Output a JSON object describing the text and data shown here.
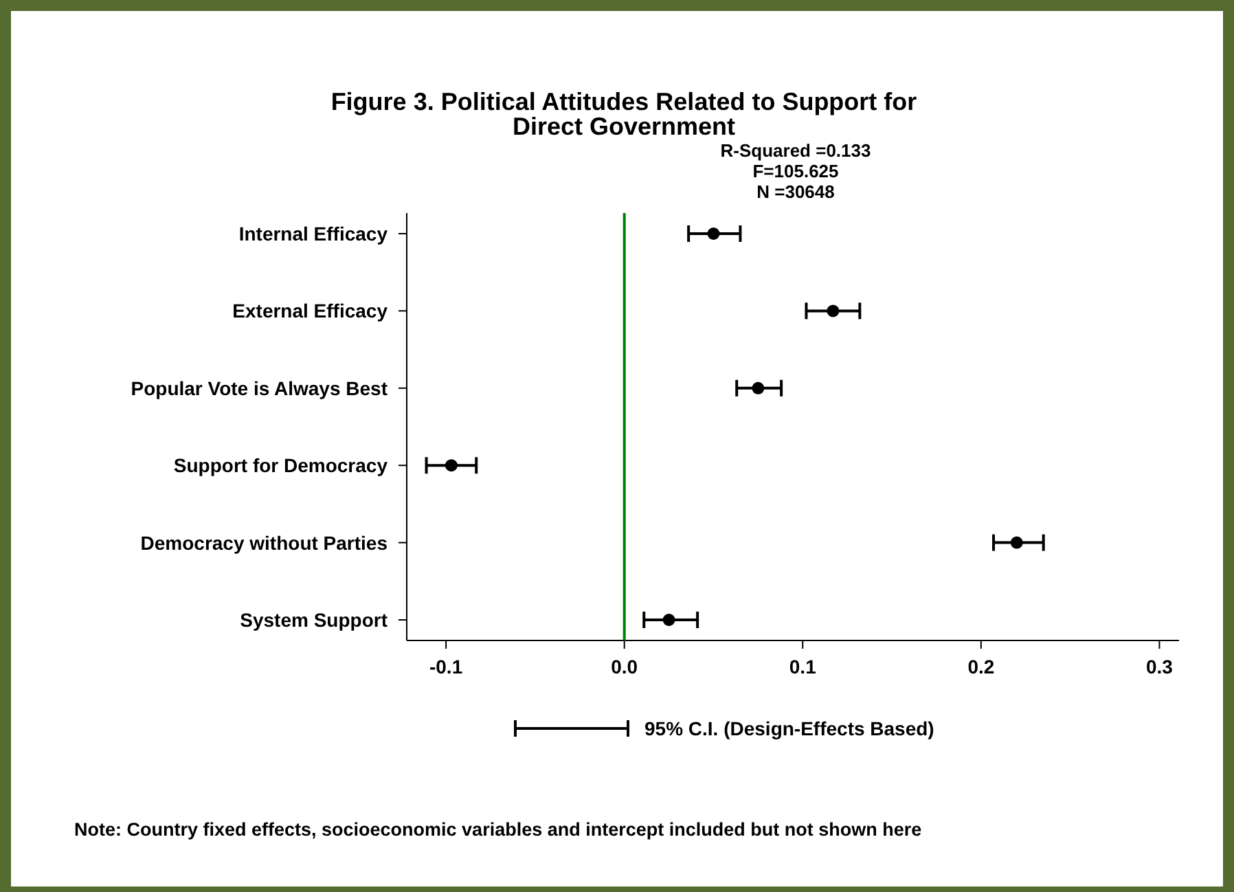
{
  "chart_data": {
    "type": "scatter",
    "orientation": "horizontal",
    "title": "Figure 3. Political Attitudes Related to Support for Direct Government",
    "categories": [
      "Internal Efficacy",
      "External Efficacy",
      "Popular Vote is Always Best",
      "Support for Democracy",
      "Democracy without Parties",
      "System Support"
    ],
    "series": [
      {
        "name": "95% C.I. (Design-Effects Based)",
        "color": "#000000",
        "values": [
          0.05,
          0.117,
          0.075,
          -0.097,
          0.22,
          0.025
        ],
        "errors": [
          [
            0.036,
            0.065
          ],
          [
            0.102,
            0.132
          ],
          [
            0.063,
            0.088
          ],
          [
            -0.111,
            -0.083
          ],
          [
            0.207,
            0.235
          ],
          [
            0.011,
            0.041
          ]
        ]
      }
    ],
    "xlim": [
      -0.122,
      0.311
    ],
    "xticks": [
      {
        "value": -0.1,
        "label": "-0.1"
      },
      {
        "value": 0,
        "label": "0.0"
      },
      0.1,
      0.2,
      0.3
    ],
    "ref_lines": [
      {
        "axis": "x",
        "value": 0,
        "color": "#008000"
      }
    ],
    "marker": "circle",
    "legend": "bottom",
    "grid": false,
    "annotations": [
      "R-Squared =0.133",
      "F=105.625",
      "N =30648",
      "Note: Country fixed effects, socioeconomic variables and intercept included but not shown here"
    ]
  }
}
